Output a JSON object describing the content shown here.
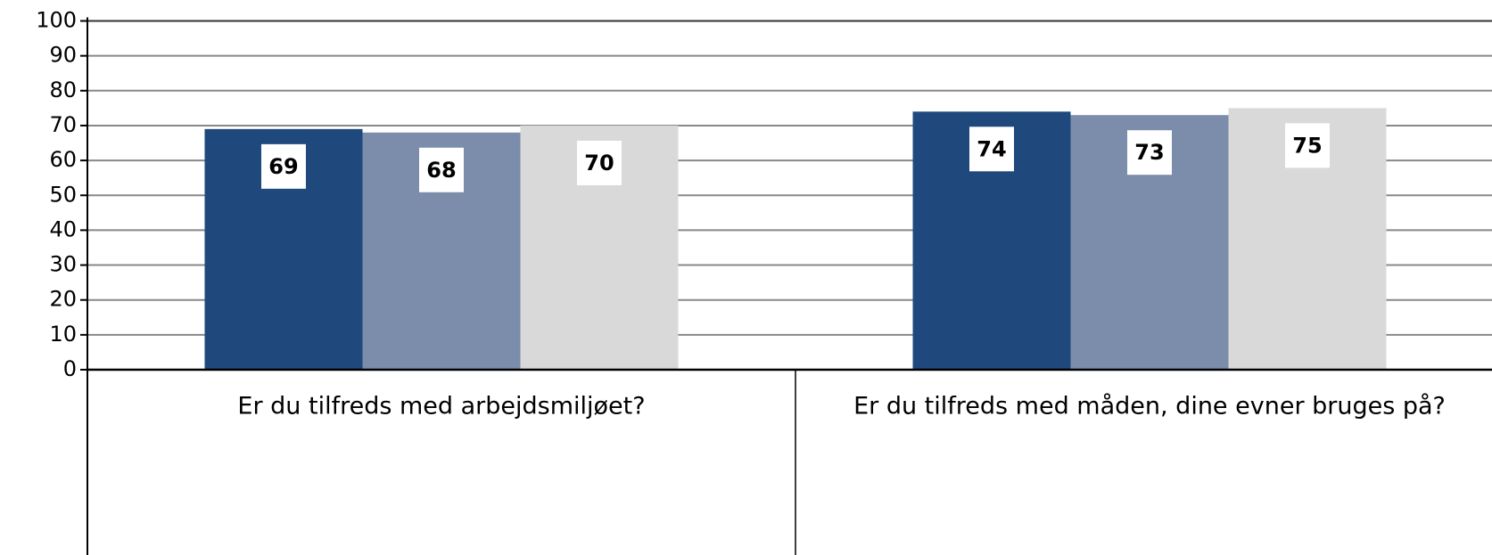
{
  "chart_data": {
    "type": "bar",
    "categories": [
      "Er du tilfreds med arbejdsmiljøet?",
      "Er du tilfreds med måden, dine evner bruges på?"
    ],
    "series": [
      {
        "color": "#1f497d",
        "values": [
          69,
          74
        ]
      },
      {
        "color": "#7b8dab",
        "values": [
          68,
          73
        ]
      },
      {
        "color": "#d9d9d9",
        "values": [
          70,
          75
        ]
      }
    ],
    "ylim": [
      0,
      100
    ],
    "yticks": [
      0,
      10,
      20,
      30,
      40,
      50,
      60,
      70,
      80,
      90,
      100
    ],
    "grid": true
  }
}
